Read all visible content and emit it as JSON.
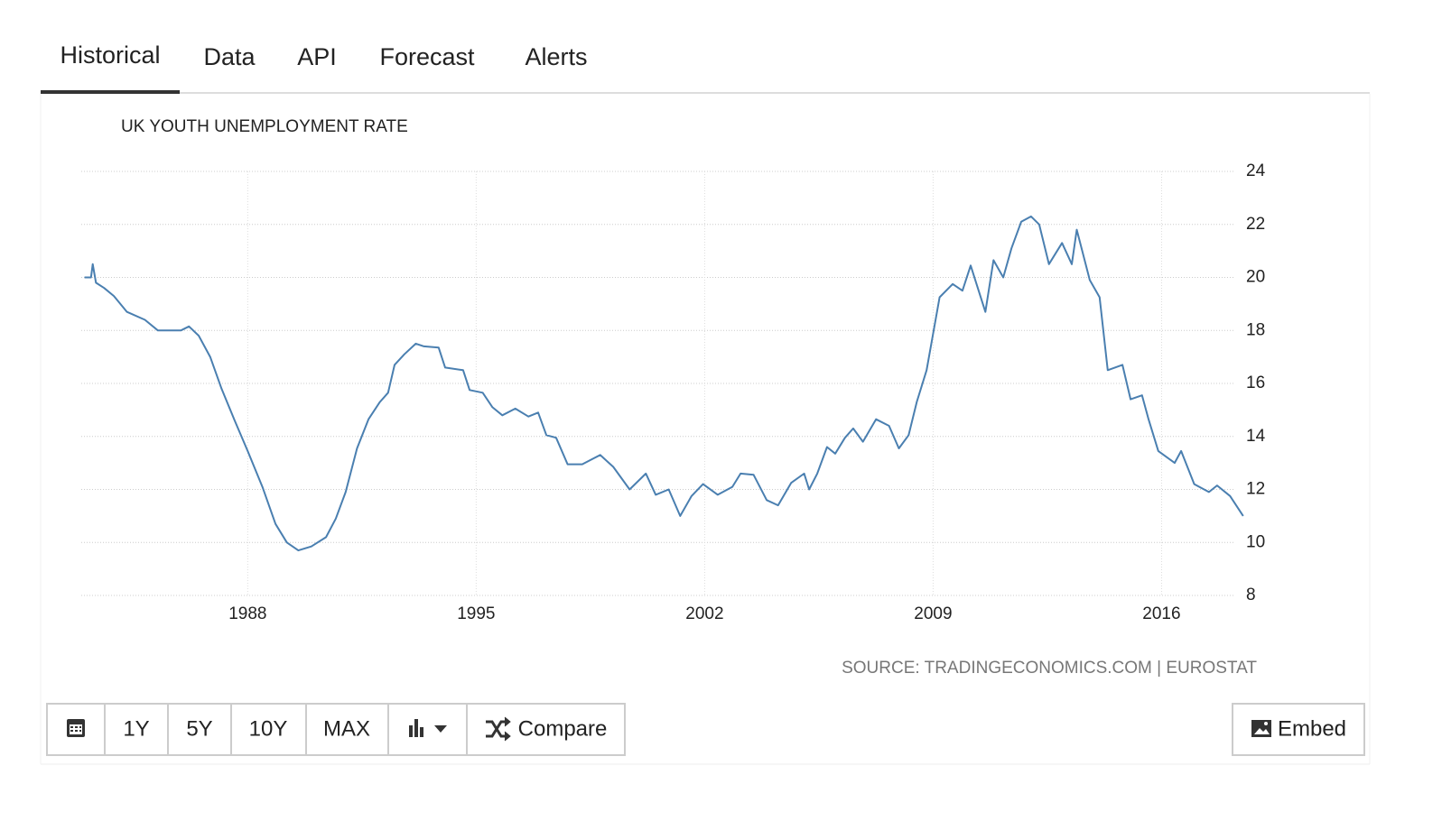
{
  "tabs": [
    "Historical",
    "Data",
    "API",
    "Forecast",
    "Alerts"
  ],
  "chart_data": {
    "type": "line",
    "title": "UK YOUTH UNEMPLOYMENT RATE",
    "source": "SOURCE: TRADINGECONOMICS.COM | EUROSTAT",
    "color": "#4a7fb0",
    "x": [
      1983.0,
      1983.2,
      1983.25,
      1983.35,
      1983.6,
      1983.9,
      1984.3,
      1984.85,
      1985.25,
      1985.95,
      1986.2,
      1986.5,
      1986.85,
      1987.2,
      1987.6,
      1988.0,
      1988.45,
      1988.85,
      1989.2,
      1989.55,
      1989.95,
      1990.4,
      1990.7,
      1991.0,
      1991.35,
      1991.7,
      1992.05,
      1992.3,
      1992.5,
      1992.8,
      1993.15,
      1993.4,
      1993.85,
      1994.05,
      1994.6,
      1994.8,
      1995.2,
      1995.5,
      1995.8,
      1996.2,
      1996.6,
      1996.9,
      1997.15,
      1997.45,
      1997.8,
      1998.25,
      1998.8,
      1999.2,
      1999.7,
      2000.2,
      2000.5,
      2000.9,
      2001.25,
      2001.6,
      2001.95,
      2002.4,
      2002.85,
      2003.1,
      2003.5,
      2003.9,
      2004.25,
      2004.65,
      2005.05,
      2005.2,
      2005.45,
      2005.75,
      2006.0,
      2006.3,
      2006.55,
      2006.85,
      2007.25,
      2007.65,
      2007.95,
      2008.25,
      2008.5,
      2008.8,
      2009.2,
      2009.6,
      2009.9,
      2010.15,
      2010.6,
      2010.85,
      2011.15,
      2011.4,
      2011.7,
      2012.0,
      2012.25,
      2012.55,
      2012.95,
      2013.25,
      2013.4,
      2013.8,
      2014.1,
      2014.35,
      2014.8,
      2015.05,
      2015.4,
      2015.6,
      2015.9,
      2016.4,
      2016.6,
      2017.0,
      2017.45,
      2017.7,
      2018.1,
      2018.5
    ],
    "values": [
      20.0,
      20.0,
      20.5,
      19.8,
      19.6,
      19.3,
      18.7,
      18.4,
      18.0,
      18.0,
      18.15,
      17.8,
      17.0,
      15.8,
      14.6,
      13.45,
      12.1,
      10.7,
      10.0,
      9.7,
      9.85,
      10.2,
      10.9,
      11.9,
      13.55,
      14.65,
      15.3,
      15.65,
      16.7,
      17.1,
      17.5,
      17.4,
      17.35,
      16.6,
      16.5,
      15.75,
      15.65,
      15.1,
      14.8,
      15.05,
      14.75,
      14.9,
      14.05,
      13.95,
      12.95,
      12.95,
      13.3,
      12.85,
      12.0,
      12.6,
      11.8,
      12.0,
      11.0,
      11.75,
      12.2,
      11.8,
      12.1,
      12.6,
      12.55,
      11.6,
      11.4,
      12.25,
      12.6,
      12.0,
      12.6,
      13.6,
      13.35,
      13.95,
      14.3,
      13.8,
      14.65,
      14.4,
      13.55,
      14.05,
      15.3,
      16.5,
      19.25,
      19.75,
      19.5,
      20.45,
      18.7,
      20.65,
      20.0,
      21.1,
      22.1,
      22.3,
      22.0,
      20.5,
      21.3,
      20.5,
      21.8,
      19.9,
      19.25,
      16.5,
      16.7,
      15.4,
      15.55,
      14.65,
      13.45,
      13.0,
      13.45,
      12.2,
      11.9,
      12.15,
      11.75,
      11.0
    ],
    "xlim": [
      1982.9,
      2018.45
    ],
    "xticks": [
      1988,
      1995,
      2002,
      2009,
      2016
    ],
    "ylim": [
      8,
      24
    ],
    "yticks": [
      8,
      10,
      12,
      14,
      16,
      18,
      20,
      22,
      24
    ],
    "grid": true
  },
  "buttons": [
    "1Y",
    "5Y",
    "10Y",
    "MAX",
    "Compare"
  ],
  "embed": "Embed"
}
